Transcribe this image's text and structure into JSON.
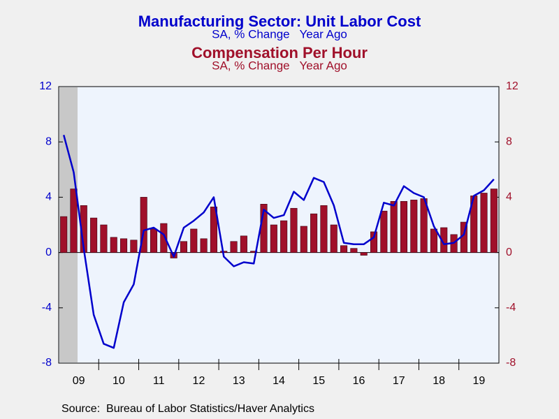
{
  "chart_data": {
    "type": "bar_line",
    "title": "Manufacturing Sector: Unit Labor Cost",
    "subtitle": "SA, % Change   Year Ago",
    "title2": "Compensation Per Hour",
    "subtitle2": "SA, % Change   Year Ago",
    "source": "Source:  Bureau of Labor Statistics/Haver Analytics",
    "categories": [
      null,
      null,
      null,
      null,
      null,
      null,
      null,
      null,
      null,
      null,
      null,
      null,
      null,
      null,
      null,
      null,
      null,
      null,
      null,
      null,
      null,
      null,
      null,
      null,
      null,
      null,
      null,
      null,
      null,
      null,
      null,
      null,
      null,
      null,
      null,
      null,
      null,
      null,
      null,
      null,
      null,
      null,
      null,
      null
    ],
    "year_labels": [
      "09",
      "10",
      "11",
      "12",
      "13",
      "14",
      "15",
      "16",
      "17",
      "18",
      "19"
    ],
    "series": [
      {
        "name": "Manufacturing Sector: Unit Labor Cost",
        "type": "line",
        "axis": "y",
        "color": "#0000cc",
        "values": [
          8.5,
          5.8,
          0.3,
          -4.5,
          -6.6,
          -6.9,
          -3.6,
          -2.3,
          1.6,
          1.8,
          1.3,
          -0.3,
          1.8,
          2.3,
          2.9,
          4.0,
          -0.3,
          -1.0,
          -0.7,
          -0.8,
          3.1,
          2.5,
          2.7,
          4.4,
          3.8,
          5.4,
          5.1,
          3.4,
          0.7,
          0.6,
          0.6,
          1.1,
          3.6,
          3.4,
          4.8,
          4.3,
          4.0,
          1.9,
          0.6,
          0.7,
          1.3,
          4.1,
          4.5,
          5.3
        ]
      },
      {
        "name": "Compensation Per Hour",
        "type": "bar",
        "axis": "y2",
        "color": "#a0102a",
        "values": [
          2.6,
          4.6,
          3.4,
          2.5,
          2.0,
          1.1,
          1.0,
          0.9,
          4.0,
          1.7,
          2.1,
          -0.4,
          0.8,
          1.7,
          1.0,
          3.3,
          0.1,
          0.8,
          1.2,
          0.1,
          3.5,
          2.0,
          2.3,
          3.2,
          1.9,
          2.8,
          3.4,
          2.0,
          0.5,
          0.3,
          -0.2,
          1.5,
          3.0,
          3.7,
          3.7,
          3.8,
          3.9,
          1.7,
          1.8,
          1.3,
          2.2,
          4.1,
          4.3,
          4.6
        ]
      }
    ],
    "ylim": [
      -8,
      12
    ],
    "yticks": [
      -8,
      -4,
      0,
      4,
      8,
      12
    ],
    "ycolor": "#0000cc",
    "y2lim": [
      -8,
      12
    ],
    "y2ticks": [
      -8,
      -4,
      0,
      4,
      8,
      12
    ],
    "y2color": "#a0102a"
  }
}
